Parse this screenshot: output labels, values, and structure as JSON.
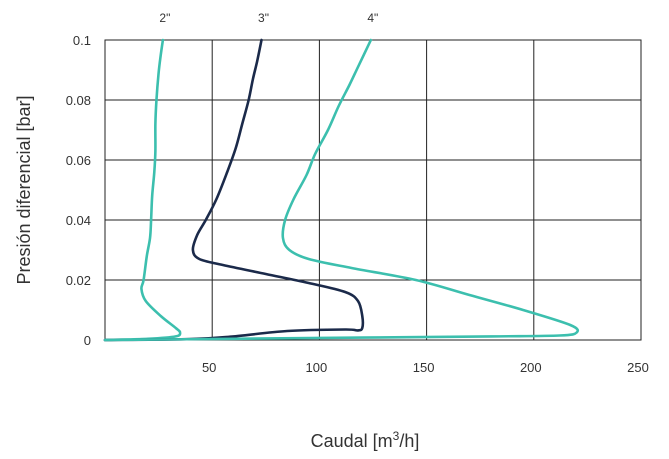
{
  "chart_data": {
    "type": "line",
    "xlabel": "Caudal [m³/h]",
    "ylabel": "Presión diferencial [bar]",
    "xlim": [
      0,
      250
    ],
    "ylim": [
      0,
      0.1
    ],
    "x_ticks": [
      {
        "value": 50,
        "label": "50"
      },
      {
        "value": 100,
        "label": "100"
      },
      {
        "value": 150,
        "label": "150"
      },
      {
        "value": 200,
        "label": "200"
      },
      {
        "value": 250,
        "label": "250"
      }
    ],
    "y_ticks": [
      {
        "value": 0,
        "label": "0"
      },
      {
        "value": 0.02,
        "label": "0.02"
      },
      {
        "value": 0.04,
        "label": "0.04"
      },
      {
        "value": 0.06,
        "label": "0.06"
      },
      {
        "value": 0.08,
        "label": "0.08"
      },
      {
        "value": 0.1,
        "label": "0.1"
      }
    ],
    "grid": true,
    "series": [
      {
        "name": "2\"",
        "color": "#3cbfae",
        "points": [
          [
            0,
            0
          ],
          [
            20,
            0.0004
          ],
          [
            33,
            0.0012
          ],
          [
            35,
            0.0025
          ],
          [
            33,
            0.004
          ],
          [
            26,
            0.008
          ],
          [
            19,
            0.013
          ],
          [
            17,
            0.017
          ],
          [
            18,
            0.02
          ],
          [
            19.5,
            0.028
          ],
          [
            21,
            0.034
          ],
          [
            21.5,
            0.04
          ],
          [
            22,
            0.048
          ],
          [
            23,
            0.056
          ],
          [
            23.5,
            0.063
          ],
          [
            23.5,
            0.072
          ],
          [
            24,
            0.08
          ],
          [
            25,
            0.089
          ],
          [
            26,
            0.095
          ],
          [
            27,
            0.1
          ]
        ]
      },
      {
        "name": "3\"",
        "color": "#1b2a4a",
        "points": [
          [
            0,
            0
          ],
          [
            40,
            0.0003
          ],
          [
            60,
            0.0012
          ],
          [
            85,
            0.003
          ],
          [
            112,
            0.0035
          ],
          [
            118,
            0.0032
          ],
          [
            120,
            0.004
          ],
          [
            120,
            0.008
          ],
          [
            118,
            0.013
          ],
          [
            112,
            0.016
          ],
          [
            95,
            0.019
          ],
          [
            75,
            0.022
          ],
          [
            55,
            0.025
          ],
          [
            44,
            0.027
          ],
          [
            41,
            0.03
          ],
          [
            43,
            0.035
          ],
          [
            47,
            0.04
          ],
          [
            52,
            0.047
          ],
          [
            57,
            0.056
          ],
          [
            61,
            0.064
          ],
          [
            64,
            0.072
          ],
          [
            67,
            0.08
          ],
          [
            69,
            0.087
          ],
          [
            71,
            0.093
          ],
          [
            73,
            0.1
          ]
        ]
      },
      {
        "name": "4\"",
        "color": "#3cbfae",
        "points": [
          [
            0,
            0
          ],
          [
            60,
            0.0004
          ],
          [
            120,
            0.0008
          ],
          [
            180,
            0.0012
          ],
          [
            212,
            0.0015
          ],
          [
            220,
            0.0025
          ],
          [
            217,
            0.005
          ],
          [
            195,
            0.01
          ],
          [
            170,
            0.015
          ],
          [
            145,
            0.02
          ],
          [
            115,
            0.024
          ],
          [
            95,
            0.027
          ],
          [
            86,
            0.03
          ],
          [
            83,
            0.034
          ],
          [
            84,
            0.04
          ],
          [
            88,
            0.047
          ],
          [
            94,
            0.055
          ],
          [
            98,
            0.062
          ],
          [
            104,
            0.07
          ],
          [
            109,
            0.078
          ],
          [
            114,
            0.085
          ],
          [
            118,
            0.091
          ],
          [
            124,
            0.1
          ]
        ]
      }
    ]
  }
}
